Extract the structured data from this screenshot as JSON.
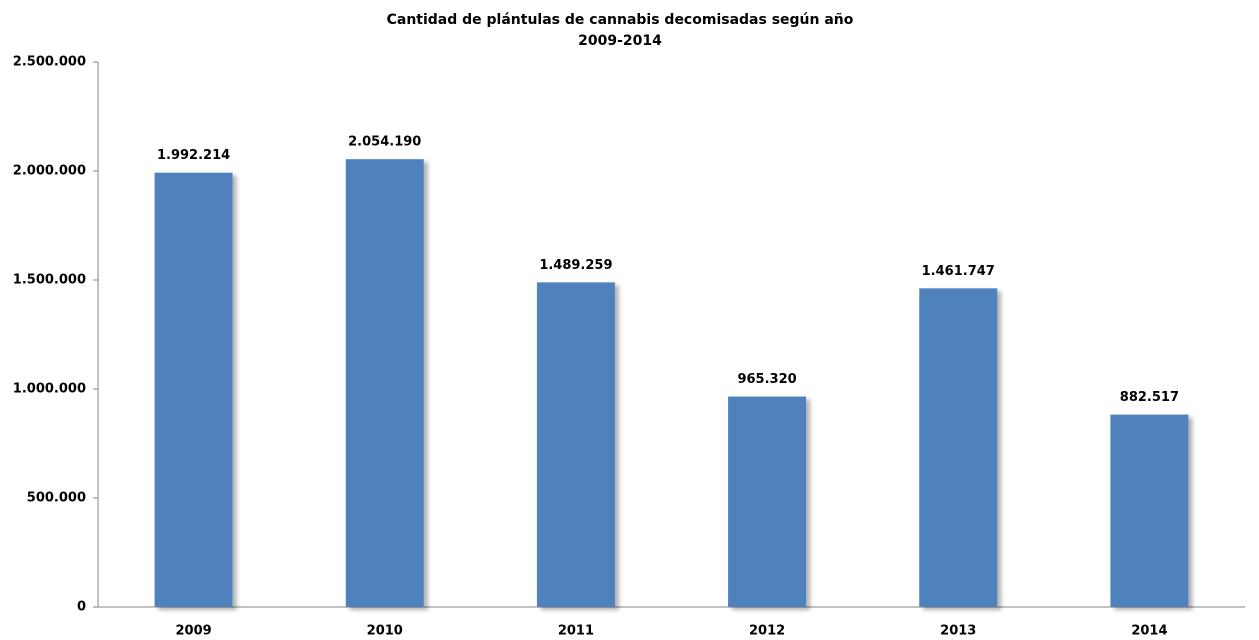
{
  "chart_data": {
    "type": "bar",
    "title": "Cantidad de plántulas de cannabis decomisadas según año",
    "subtitle": "2009-2014",
    "categories": [
      "2009",
      "2010",
      "2011",
      "2012",
      "2013",
      "2014"
    ],
    "values": [
      1992214,
      2054190,
      1489259,
      965320,
      1461747,
      882517
    ],
    "value_labels": [
      "1.992.214",
      "2.054.190",
      "1.489.259",
      "965.320",
      "1.461.747",
      "882.517"
    ],
    "color": "#4f81bd",
    "ylim": [
      0,
      2500000
    ],
    "yticks": [
      0,
      {
        "value": 500000,
        "label": "500.000"
      },
      {
        "value": 1000000,
        "label": "1.000.000"
      },
      {
        "value": 1500000,
        "label": "1.500.000"
      },
      {
        "value": 2000000,
        "label": "2.000.000"
      },
      {
        "value": 2500000,
        "label": "2.500.000"
      }
    ],
    "grid": false
  }
}
